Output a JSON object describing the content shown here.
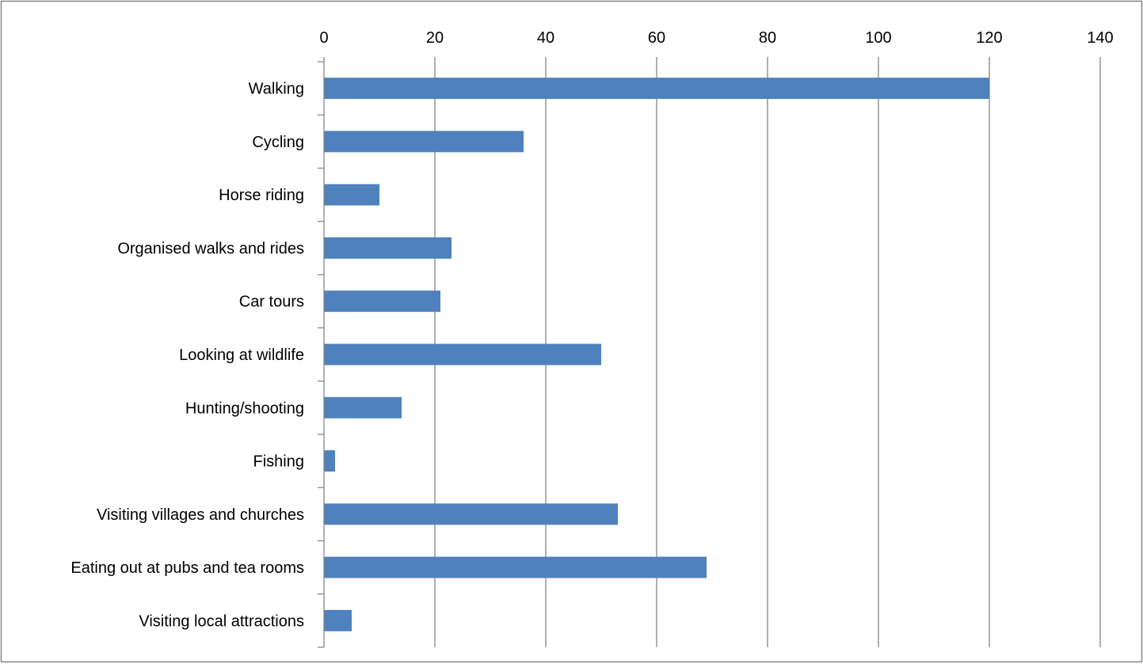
{
  "chart_data": {
    "type": "bar",
    "orientation": "horizontal",
    "title": "",
    "xlabel": "",
    "ylabel": "",
    "categories": [
      "Walking",
      "Cycling",
      "Horse riding",
      "Organised walks and rides",
      "Car tours",
      "Looking at wildlife",
      "Hunting/shooting",
      "Fishing",
      "Visiting villages and churches",
      "Eating out at pubs and tea rooms",
      "Visiting local attractions"
    ],
    "values": [
      120,
      36,
      10,
      23,
      21,
      50,
      14,
      2,
      53,
      69,
      5
    ],
    "xlim": [
      0,
      140
    ],
    "xticks": [
      0,
      20,
      40,
      60,
      80,
      100,
      120,
      140
    ],
    "x_axis_position": "top",
    "grid": "vertical",
    "legend": "none",
    "bar_color": "#4f81bd",
    "grid_color": "#868686"
  }
}
